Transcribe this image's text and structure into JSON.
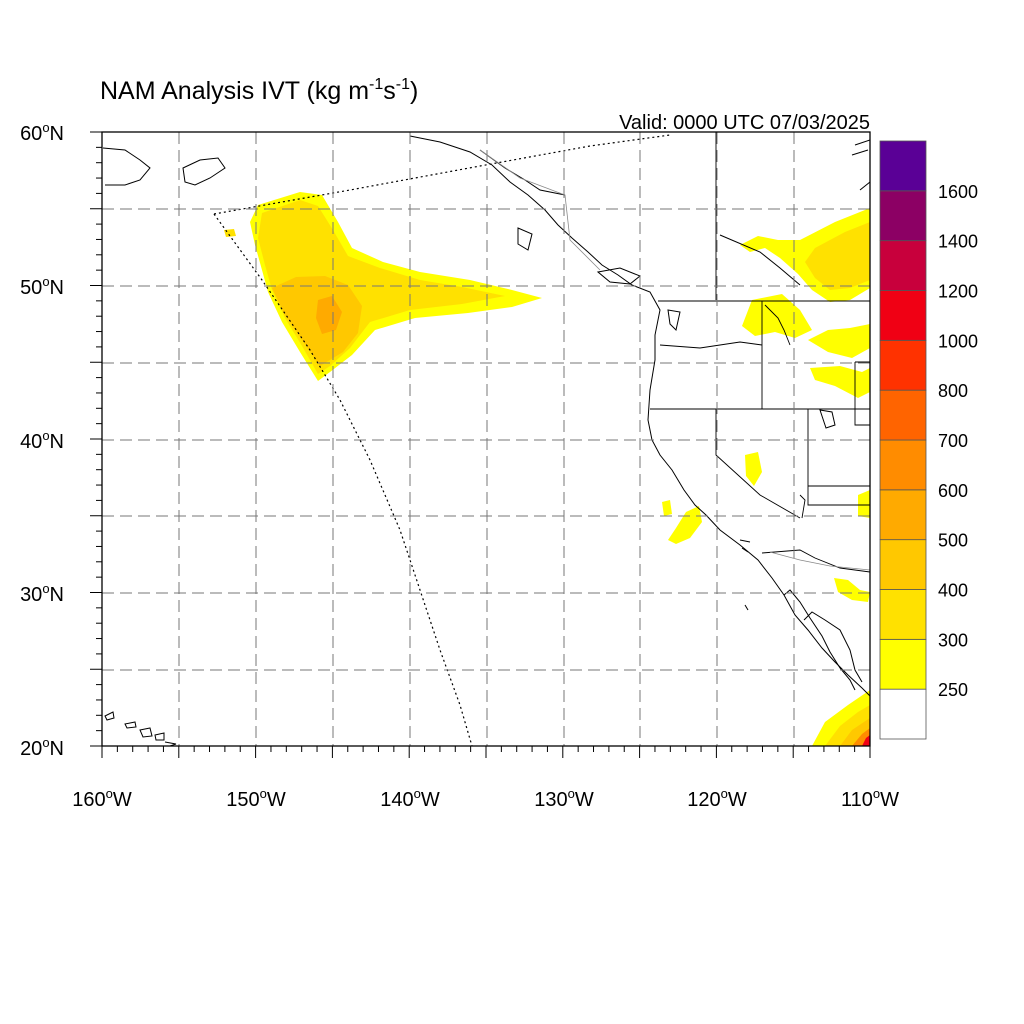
{
  "title": {
    "prefix": "NAM Analysis IVT (kg m",
    "exp1": "-1",
    "mid": "s",
    "exp2": "-1",
    "suffix": ")"
  },
  "valid": "Valid: 0000 UTC 07/03/2025",
  "lat_labels": [
    {
      "deg": "60",
      "hemi": "N"
    },
    {
      "deg": "50",
      "hemi": "N"
    },
    {
      "deg": "40",
      "hemi": "N"
    },
    {
      "deg": "30",
      "hemi": "N"
    },
    {
      "deg": "20",
      "hemi": "N"
    }
  ],
  "lon_labels": [
    {
      "deg": "160",
      "hemi": "W"
    },
    {
      "deg": "150",
      "hemi": "W"
    },
    {
      "deg": "140",
      "hemi": "W"
    },
    {
      "deg": "130",
      "hemi": "W"
    },
    {
      "deg": "120",
      "hemi": "W"
    },
    {
      "deg": "110",
      "hemi": "W"
    }
  ],
  "legend": {
    "levels": [
      "250",
      "300",
      "400",
      "500",
      "600",
      "700",
      "800",
      "1000",
      "1200",
      "1400",
      "1600"
    ],
    "colors": [
      "#ffffff",
      "#ffff00",
      "#ffe100",
      "#ffc800",
      "#ffaa00",
      "#ff8c00",
      "#ff6400",
      "#ff3200",
      "#f00014",
      "#c8003c",
      "#8c0064",
      "#5a0096"
    ]
  },
  "chart_data": {
    "type": "map",
    "projection": "lat-lon",
    "lon_range": [
      -160,
      -110
    ],
    "lat_range": [
      20,
      60
    ],
    "grid": true,
    "legend_placement": "right",
    "variable_units": "kg m-1 s-1"
  }
}
